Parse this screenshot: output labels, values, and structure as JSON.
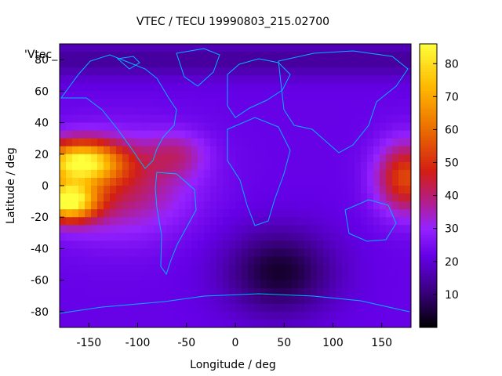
{
  "chart_data": {
    "type": "heatmap",
    "title": "VTEC / TECU 19990803_215.02700",
    "xlabel": "Longitude / deg",
    "ylabel": "Latitude / deg",
    "series_label": "'Vtec_",
    "xlim": [
      -180,
      180
    ],
    "ylim": [
      -90,
      90
    ],
    "x_ticks": [
      -150,
      -100,
      -50,
      0,
      50,
      100,
      150
    ],
    "y_ticks": [
      -80,
      -60,
      -40,
      -20,
      0,
      20,
      40,
      60,
      80
    ],
    "colorbar": {
      "min": 0,
      "max": 86,
      "ticks": [
        10,
        20,
        30,
        40,
        50,
        60,
        70,
        80
      ]
    },
    "colormap": "black-blue-purple-red-yellow",
    "features": {
      "background_tecu": 22,
      "anomalies": [
        {
          "lon": -160,
          "lat": 15,
          "peak_tecu": 78,
          "note": "equatorial anomaly north crest"
        },
        {
          "lon": -170,
          "lat": -10,
          "peak_tecu": 80,
          "note": "equatorial anomaly south crest"
        },
        {
          "lon": 175,
          "lat": 5,
          "peak_tecu": 55,
          "note": "western Pacific enhancement"
        },
        {
          "lon": 50,
          "lat": -50,
          "peak_tecu": 3,
          "note": "southern trough"
        }
      ]
    }
  }
}
